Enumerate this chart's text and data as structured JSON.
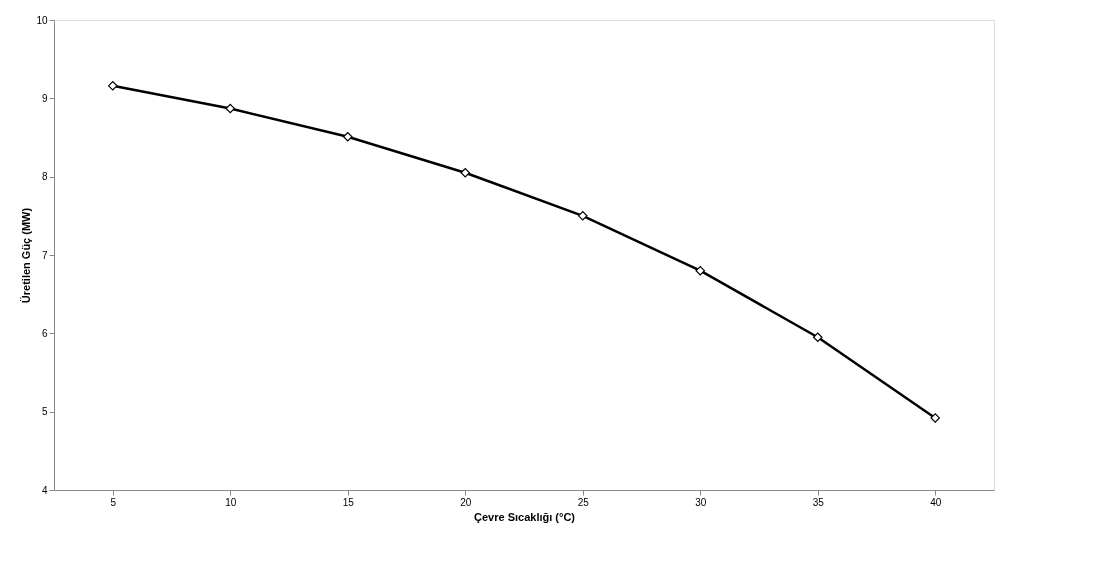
{
  "chart_data": {
    "type": "line",
    "xlabel": "Çevre Sıcaklığı (°C)",
    "ylabel": "Üretilen  Güç  (MW)",
    "categories": [
      "5",
      "10",
      "15",
      "20",
      "25",
      "30",
      "35",
      "40"
    ],
    "series": [
      {
        "color": "#000000",
        "values": [
          9.16,
          8.87,
          8.51,
          8.05,
          7.5,
          6.8,
          5.95,
          4.92
        ]
      }
    ],
    "ylim": [
      4,
      10
    ],
    "yticks": [
      4,
      5,
      6,
      7,
      8,
      9,
      10
    ],
    "grid": false,
    "marker": "diamond",
    "line_style": "solid"
  }
}
